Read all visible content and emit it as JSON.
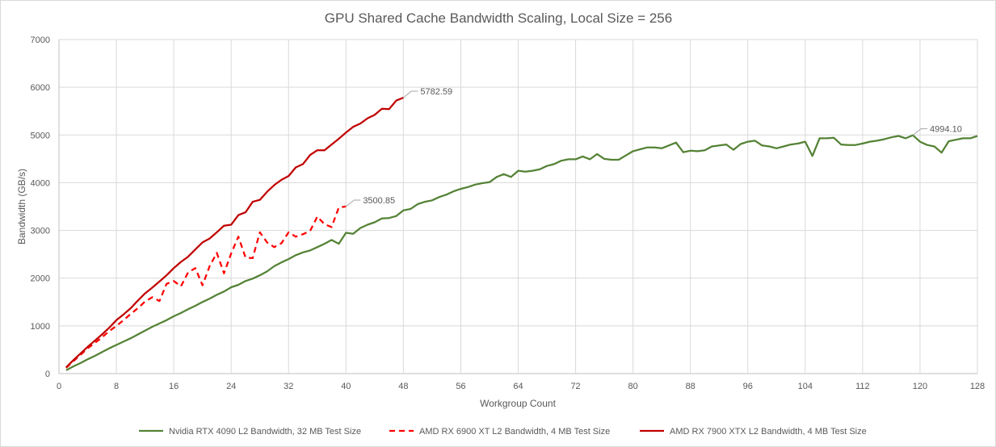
{
  "chart_data": {
    "type": "line",
    "title": "GPU Shared Cache Bandwidth Scaling, Local Size = 256",
    "xlabel": "Workgroup Count",
    "ylabel": "Bandwidth (GB/s)",
    "xlim": [
      0,
      128
    ],
    "ylim": [
      0,
      7000
    ],
    "xticks": [
      0,
      8,
      16,
      24,
      32,
      40,
      48,
      56,
      64,
      72,
      80,
      88,
      96,
      104,
      112,
      120,
      128
    ],
    "yticks": [
      0,
      1000,
      2000,
      3000,
      4000,
      5000,
      6000,
      7000
    ],
    "grid": true,
    "legend_position": "bottom",
    "series": [
      {
        "name": "Nvidia RTX 4090 L2 Bandwidth, 32 MB Test Size",
        "color": "#548235",
        "dash": false,
        "x_start": 1,
        "values": [
          70,
          150,
          220,
          300,
          370,
          450,
          530,
          600,
          670,
          740,
          820,
          900,
          980,
          1050,
          1120,
          1200,
          1270,
          1350,
          1420,
          1500,
          1570,
          1650,
          1720,
          1810,
          1860,
          1940,
          1990,
          2060,
          2140,
          2250,
          2330,
          2400,
          2480,
          2540,
          2580,
          2650,
          2720,
          2800,
          2720,
          2950,
          2930,
          3050,
          3120,
          3170,
          3250,
          3260,
          3300,
          3420,
          3450,
          3550,
          3600,
          3630,
          3700,
          3750,
          3820,
          3870,
          3910,
          3960,
          3990,
          4010,
          4120,
          4180,
          4120,
          4250,
          4230,
          4250,
          4280,
          4350,
          4390,
          4460,
          4490,
          4490,
          4550,
          4490,
          4600,
          4500,
          4480,
          4480,
          4570,
          4660,
          4700,
          4740,
          4740,
          4720,
          4780,
          4840,
          4640,
          4670,
          4660,
          4680,
          4760,
          4780,
          4800,
          4690,
          4810,
          4860,
          4880,
          4780,
          4760,
          4720,
          4760,
          4800,
          4820,
          4860,
          4560,
          4930,
          4930,
          4940,
          4800,
          4790,
          4790,
          4820,
          4860,
          4880,
          4910,
          4950,
          4980,
          4930,
          4994.1,
          4860,
          4790,
          4760,
          4630,
          4870,
          4900,
          4930,
          4930,
          4980
        ],
        "label": {
          "x": 119,
          "text": "4994.10"
        }
      },
      {
        "name": "AMD RX 6900 XT L2 Bandwidth, 4 MB Test Size",
        "color": "#FF0000",
        "dash": true,
        "x_start": 1,
        "values": [
          120,
          260,
          390,
          530,
          640,
          760,
          890,
          1000,
          1120,
          1250,
          1370,
          1510,
          1600,
          1520,
          1880,
          1940,
          1830,
          2120,
          2210,
          1850,
          2250,
          2530,
          2100,
          2520,
          2870,
          2430,
          2420,
          2960,
          2750,
          2650,
          2730,
          2960,
          2870,
          2920,
          2990,
          3290,
          3130,
          3070,
          3480,
          3500.85
        ],
        "label": {
          "x": 40,
          "text": "3500.85"
        }
      },
      {
        "name": "AMD RX 7900 XTX L2 Bandwidth, 4 MB Test Size",
        "color": "#C00000",
        "dash": false,
        "x_start": 1,
        "values": [
          130,
          280,
          420,
          560,
          690,
          820,
          960,
          1120,
          1240,
          1370,
          1530,
          1680,
          1800,
          1930,
          2060,
          2210,
          2340,
          2450,
          2600,
          2750,
          2830,
          2960,
          3100,
          3120,
          3320,
          3380,
          3600,
          3640,
          3810,
          3950,
          4060,
          4140,
          4320,
          4390,
          4580,
          4680,
          4680,
          4800,
          4920,
          5050,
          5170,
          5240,
          5350,
          5420,
          5550,
          5540,
          5720,
          5782.59
        ],
        "label": {
          "x": 48,
          "text": "5782.59"
        }
      }
    ]
  }
}
